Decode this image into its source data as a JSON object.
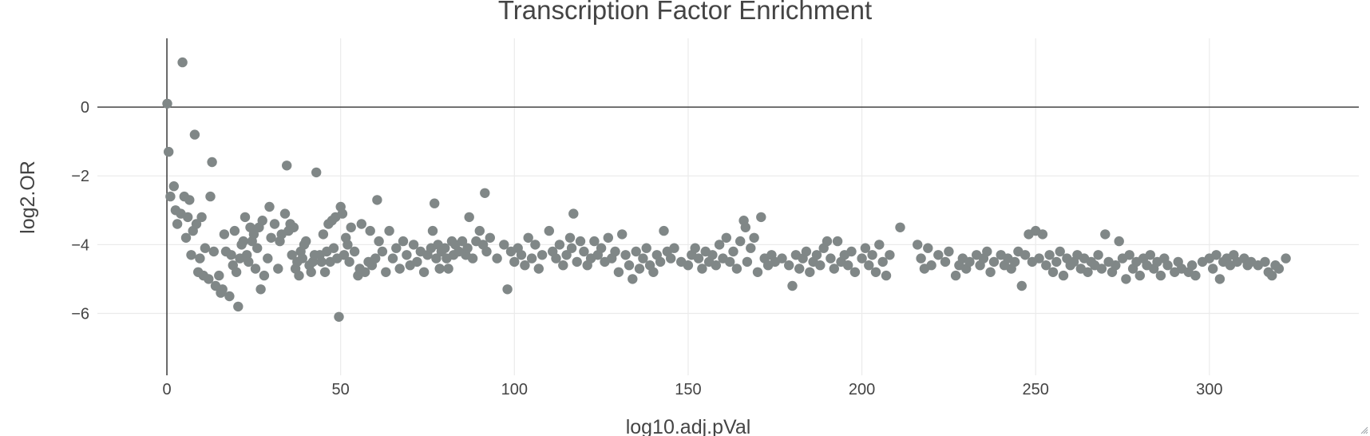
{
  "chart_data": {
    "type": "scatter",
    "title": "Transcription Factor Enrichment",
    "xlabel": "log10.adj.pVal",
    "ylabel": "log2.OR",
    "xlim": [
      -20,
      343
    ],
    "ylim": [
      -7.8,
      2.0
    ],
    "xticks": [
      0,
      50,
      100,
      150,
      200,
      250,
      300
    ],
    "yticks": [
      0,
      -2,
      -4,
      -6
    ],
    "grid": true,
    "zero_lines": true,
    "marker_color": "#808787",
    "points": [
      [
        0.1,
        0.1
      ],
      [
        0.5,
        -1.3
      ],
      [
        1,
        -2.6
      ],
      [
        2,
        -2.3
      ],
      [
        2.5,
        -3.0
      ],
      [
        3,
        -3.4
      ],
      [
        4,
        -3.1
      ],
      [
        4.5,
        1.3
      ],
      [
        5,
        -2.6
      ],
      [
        5.5,
        -3.8
      ],
      [
        6,
        -3.2
      ],
      [
        6.5,
        -2.7
      ],
      [
        7,
        -4.3
      ],
      [
        7.5,
        -3.6
      ],
      [
        8,
        -0.8
      ],
      [
        8.5,
        -3.4
      ],
      [
        9,
        -4.8
      ],
      [
        9.5,
        -4.4
      ],
      [
        10,
        -3.2
      ],
      [
        10.5,
        -4.9
      ],
      [
        11,
        -4.1
      ],
      [
        12,
        -5.0
      ],
      [
        12.5,
        -2.6
      ],
      [
        13,
        -1.6
      ],
      [
        13.5,
        -4.2
      ],
      [
        14,
        -5.2
      ],
      [
        15,
        -4.9
      ],
      [
        15.5,
        -5.4
      ],
      [
        16,
        -5.3
      ],
      [
        16.5,
        -3.7
      ],
      [
        17,
        -4.2
      ],
      [
        18,
        -5.5
      ],
      [
        18.5,
        -4.3
      ],
      [
        19,
        -4.6
      ],
      [
        19.5,
        -3.6
      ],
      [
        20,
        -4.8
      ],
      [
        20.5,
        -5.8
      ],
      [
        21,
        -4.4
      ],
      [
        21.5,
        -4.0
      ],
      [
        22,
        -3.9
      ],
      [
        22.5,
        -3.2
      ],
      [
        23,
        -4.3
      ],
      [
        23.5,
        -4.5
      ],
      [
        24,
        -3.5
      ],
      [
        24.5,
        -3.9
      ],
      [
        25,
        -3.7
      ],
      [
        25.5,
        -4.7
      ],
      [
        26,
        -4.1
      ],
      [
        26.5,
        -3.5
      ],
      [
        27,
        -5.3
      ],
      [
        27.5,
        -3.3
      ],
      [
        28,
        -4.9
      ],
      [
        29,
        -4.4
      ],
      [
        29.5,
        -2.9
      ],
      [
        30,
        -3.8
      ],
      [
        31,
        -3.4
      ],
      [
        32,
        -4.7
      ],
      [
        32.5,
        -3.9
      ],
      [
        33,
        -3.7
      ],
      [
        34,
        -3.1
      ],
      [
        34.5,
        -1.7
      ],
      [
        35,
        -3.6
      ],
      [
        35.5,
        -3.4
      ],
      [
        36,
        -4.3
      ],
      [
        36.5,
        -3.5
      ],
      [
        37,
        -4.7
      ],
      [
        37.5,
        -4.5
      ],
      [
        38,
        -4.9
      ],
      [
        38.5,
        -4.2
      ],
      [
        39,
        -4.4
      ],
      [
        39.5,
        -4.0
      ],
      [
        40,
        -3.9
      ],
      [
        41,
        -4.6
      ],
      [
        41.5,
        -4.8
      ],
      [
        42,
        -4.5
      ],
      [
        42.5,
        -4.3
      ],
      [
        43,
        -1.9
      ],
      [
        44,
        -4.3
      ],
      [
        44.5,
        -4.5
      ],
      [
        45,
        -3.7
      ],
      [
        45.5,
        -4.8
      ],
      [
        46,
        -4.2
      ],
      [
        46.5,
        -3.4
      ],
      [
        47,
        -4.5
      ],
      [
        47.5,
        -3.3
      ],
      [
        48,
        -4.1
      ],
      [
        48.5,
        -3.2
      ],
      [
        49,
        -4.4
      ],
      [
        49.5,
        -6.1
      ],
      [
        50,
        -2.9
      ],
      [
        50.5,
        -3.1
      ],
      [
        51,
        -4.3
      ],
      [
        51.5,
        -3.8
      ],
      [
        52,
        -4.0
      ],
      [
        52.5,
        -4.5
      ],
      [
        53,
        -3.5
      ],
      [
        54,
        -4.2
      ],
      [
        55,
        -4.9
      ],
      [
        55.5,
        -4.7
      ],
      [
        56,
        -3.4
      ],
      [
        57,
        -4.8
      ],
      [
        58,
        -4.5
      ],
      [
        58.5,
        -3.6
      ],
      [
        59,
        -4.6
      ],
      [
        60,
        -4.4
      ],
      [
        60.5,
        -2.7
      ],
      [
        61,
        -3.9
      ],
      [
        62,
        -4.2
      ],
      [
        63,
        -4.8
      ],
      [
        64,
        -3.6
      ],
      [
        65,
        -4.4
      ],
      [
        66,
        -4.1
      ],
      [
        67,
        -4.7
      ],
      [
        68,
        -3.9
      ],
      [
        69,
        -4.3
      ],
      [
        70,
        -4.6
      ],
      [
        71,
        -4.0
      ],
      [
        72,
        -4.5
      ],
      [
        73,
        -4.2
      ],
      [
        74,
        -4.8
      ],
      [
        75,
        -4.3
      ],
      [
        76,
        -4.1
      ],
      [
        76.5,
        -3.6
      ],
      [
        77,
        -2.8
      ],
      [
        77.5,
        -4.4
      ],
      [
        78,
        -4.0
      ],
      [
        78.5,
        -4.7
      ],
      [
        79,
        -4.2
      ],
      [
        80,
        -4.1
      ],
      [
        80.5,
        -4.4
      ],
      [
        81,
        -4.7
      ],
      [
        82,
        -3.9
      ],
      [
        82.5,
        -4.3
      ],
      [
        83,
        -4.0
      ],
      [
        84,
        -4.2
      ],
      [
        85,
        -3.9
      ],
      [
        86,
        -4.3
      ],
      [
        86.5,
        -4.1
      ],
      [
        87,
        -3.2
      ],
      [
        88,
        -4.4
      ],
      [
        89,
        -3.9
      ],
      [
        90,
        -3.6
      ],
      [
        91,
        -4.0
      ],
      [
        91.5,
        -2.5
      ],
      [
        92,
        -4.2
      ],
      [
        93,
        -3.8
      ],
      [
        95,
        -4.4
      ],
      [
        97,
        -4.0
      ],
      [
        98,
        -5.3
      ],
      [
        99,
        -4.2
      ],
      [
        100,
        -4.5
      ],
      [
        101,
        -4.1
      ],
      [
        102,
        -4.3
      ],
      [
        103,
        -4.6
      ],
      [
        104,
        -3.8
      ],
      [
        105,
        -4.4
      ],
      [
        106,
        -4.0
      ],
      [
        107,
        -4.7
      ],
      [
        108,
        -4.3
      ],
      [
        110,
        -3.6
      ],
      [
        111,
        -4.2
      ],
      [
        112,
        -4.4
      ],
      [
        113,
        -4.0
      ],
      [
        114,
        -4.6
      ],
      [
        115,
        -4.3
      ],
      [
        116,
        -3.8
      ],
      [
        116.5,
        -4.1
      ],
      [
        117,
        -3.1
      ],
      [
        118,
        -4.5
      ],
      [
        119,
        -3.9
      ],
      [
        120,
        -4.2
      ],
      [
        121,
        -4.6
      ],
      [
        122,
        -4.4
      ],
      [
        123,
        -3.9
      ],
      [
        124,
        -4.3
      ],
      [
        125,
        -4.1
      ],
      [
        126,
        -4.5
      ],
      [
        127,
        -3.8
      ],
      [
        128,
        -4.4
      ],
      [
        129,
        -4.2
      ],
      [
        130,
        -4.8
      ],
      [
        131,
        -3.7
      ],
      [
        132,
        -4.3
      ],
      [
        133,
        -4.6
      ],
      [
        134,
        -5.0
      ],
      [
        135,
        -4.2
      ],
      [
        136,
        -4.7
      ],
      [
        137,
        -4.4
      ],
      [
        138,
        -4.1
      ],
      [
        139,
        -4.6
      ],
      [
        140,
        -4.8
      ],
      [
        141,
        -4.3
      ],
      [
        142,
        -4.5
      ],
      [
        143,
        -3.6
      ],
      [
        144,
        -4.2
      ],
      [
        145,
        -4.4
      ],
      [
        146,
        -4.1
      ],
      [
        148,
        -4.5
      ],
      [
        150,
        -4.6
      ],
      [
        151,
        -4.3
      ],
      [
        152,
        -4.1
      ],
      [
        153,
        -4.4
      ],
      [
        154,
        -4.7
      ],
      [
        155,
        -4.2
      ],
      [
        156,
        -4.5
      ],
      [
        157,
        -4.3
      ],
      [
        158,
        -4.6
      ],
      [
        159,
        -4.0
      ],
      [
        160,
        -4.4
      ],
      [
        161,
        -3.8
      ],
      [
        162,
        -4.5
      ],
      [
        163,
        -4.2
      ],
      [
        164,
        -4.7
      ],
      [
        165,
        -3.9
      ],
      [
        166,
        -3.3
      ],
      [
        166.5,
        -3.5
      ],
      [
        167,
        -4.5
      ],
      [
        168,
        -4.1
      ],
      [
        169,
        -3.8
      ],
      [
        170,
        -4.8
      ],
      [
        171,
        -3.2
      ],
      [
        172,
        -4.4
      ],
      [
        173,
        -4.6
      ],
      [
        174,
        -4.3
      ],
      [
        175,
        -4.5
      ],
      [
        177,
        -4.4
      ],
      [
        179,
        -4.6
      ],
      [
        180,
        -5.2
      ],
      [
        181,
        -4.3
      ],
      [
        182,
        -4.7
      ],
      [
        183,
        -4.4
      ],
      [
        184,
        -4.2
      ],
      [
        185,
        -4.8
      ],
      [
        186,
        -4.5
      ],
      [
        187,
        -4.3
      ],
      [
        188,
        -4.6
      ],
      [
        189,
        -4.1
      ],
      [
        190,
        -3.9
      ],
      [
        191,
        -4.4
      ],
      [
        192,
        -4.7
      ],
      [
        193,
        -3.9
      ],
      [
        194,
        -4.5
      ],
      [
        195,
        -4.3
      ],
      [
        196,
        -4.6
      ],
      [
        197,
        -4.2
      ],
      [
        198,
        -4.8
      ],
      [
        200,
        -4.4
      ],
      [
        201,
        -4.1
      ],
      [
        202,
        -4.6
      ],
      [
        203,
        -4.3
      ],
      [
        204,
        -4.8
      ],
      [
        205,
        -4.0
      ],
      [
        206,
        -4.5
      ],
      [
        207,
        -4.9
      ],
      [
        208,
        -4.3
      ],
      [
        211,
        -3.5
      ],
      [
        216,
        -4.0
      ],
      [
        217,
        -4.4
      ],
      [
        218,
        -4.7
      ],
      [
        219,
        -4.1
      ],
      [
        220,
        -4.6
      ],
      [
        222,
        -4.3
      ],
      [
        224,
        -4.5
      ],
      [
        225,
        -4.2
      ],
      [
        227,
        -4.9
      ],
      [
        228,
        -4.6
      ],
      [
        229,
        -4.4
      ],
      [
        230,
        -4.7
      ],
      [
        231,
        -4.5
      ],
      [
        233,
        -4.3
      ],
      [
        234,
        -4.6
      ],
      [
        235,
        -4.4
      ],
      [
        236,
        -4.2
      ],
      [
        237,
        -4.8
      ],
      [
        238,
        -4.5
      ],
      [
        240,
        -4.3
      ],
      [
        241,
        -4.6
      ],
      [
        242,
        -4.4
      ],
      [
        243,
        -4.7
      ],
      [
        244,
        -4.5
      ],
      [
        245,
        -4.2
      ],
      [
        246,
        -5.2
      ],
      [
        247,
        -4.3
      ],
      [
        248,
        -3.7
      ],
      [
        249,
        -4.5
      ],
      [
        250,
        -3.6
      ],
      [
        251,
        -4.4
      ],
      [
        252,
        -3.7
      ],
      [
        253,
        -4.6
      ],
      [
        254,
        -4.3
      ],
      [
        255,
        -4.8
      ],
      [
        256,
        -4.5
      ],
      [
        257,
        -4.2
      ],
      [
        258,
        -4.9
      ],
      [
        259,
        -4.4
      ],
      [
        260,
        -4.6
      ],
      [
        261,
        -4.5
      ],
      [
        262,
        -4.3
      ],
      [
        263,
        -4.7
      ],
      [
        264,
        -4.4
      ],
      [
        265,
        -4.8
      ],
      [
        266,
        -4.5
      ],
      [
        267,
        -4.6
      ],
      [
        268,
        -4.3
      ],
      [
        269,
        -4.7
      ],
      [
        270,
        -3.7
      ],
      [
        271,
        -4.5
      ],
      [
        272,
        -4.8
      ],
      [
        273,
        -4.6
      ],
      [
        274,
        -3.9
      ],
      [
        275,
        -4.4
      ],
      [
        276,
        -5.0
      ],
      [
        277,
        -4.3
      ],
      [
        278,
        -4.7
      ],
      [
        279,
        -4.5
      ],
      [
        280,
        -4.9
      ],
      [
        281,
        -4.4
      ],
      [
        282,
        -4.6
      ],
      [
        283,
        -4.3
      ],
      [
        284,
        -4.7
      ],
      [
        285,
        -4.5
      ],
      [
        286,
        -4.9
      ],
      [
        287,
        -4.4
      ],
      [
        288,
        -4.6
      ],
      [
        290,
        -4.8
      ],
      [
        291,
        -4.5
      ],
      [
        292,
        -4.7
      ],
      [
        294,
        -4.8
      ],
      [
        295,
        -4.6
      ],
      [
        296,
        -4.9
      ],
      [
        298,
        -4.5
      ],
      [
        300,
        -4.4
      ],
      [
        301,
        -4.7
      ],
      [
        302,
        -4.3
      ],
      [
        303,
        -5.0
      ],
      [
        304,
        -4.5
      ],
      [
        305,
        -4.4
      ],
      [
        306,
        -4.6
      ],
      [
        307,
        -4.3
      ],
      [
        308,
        -4.5
      ],
      [
        310,
        -4.4
      ],
      [
        311,
        -4.6
      ],
      [
        312,
        -4.5
      ],
      [
        314,
        -4.6
      ],
      [
        316,
        -4.5
      ],
      [
        317,
        -4.8
      ],
      [
        318,
        -4.9
      ],
      [
        319,
        -4.6
      ],
      [
        320,
        -4.7
      ],
      [
        322,
        -4.4
      ]
    ]
  }
}
